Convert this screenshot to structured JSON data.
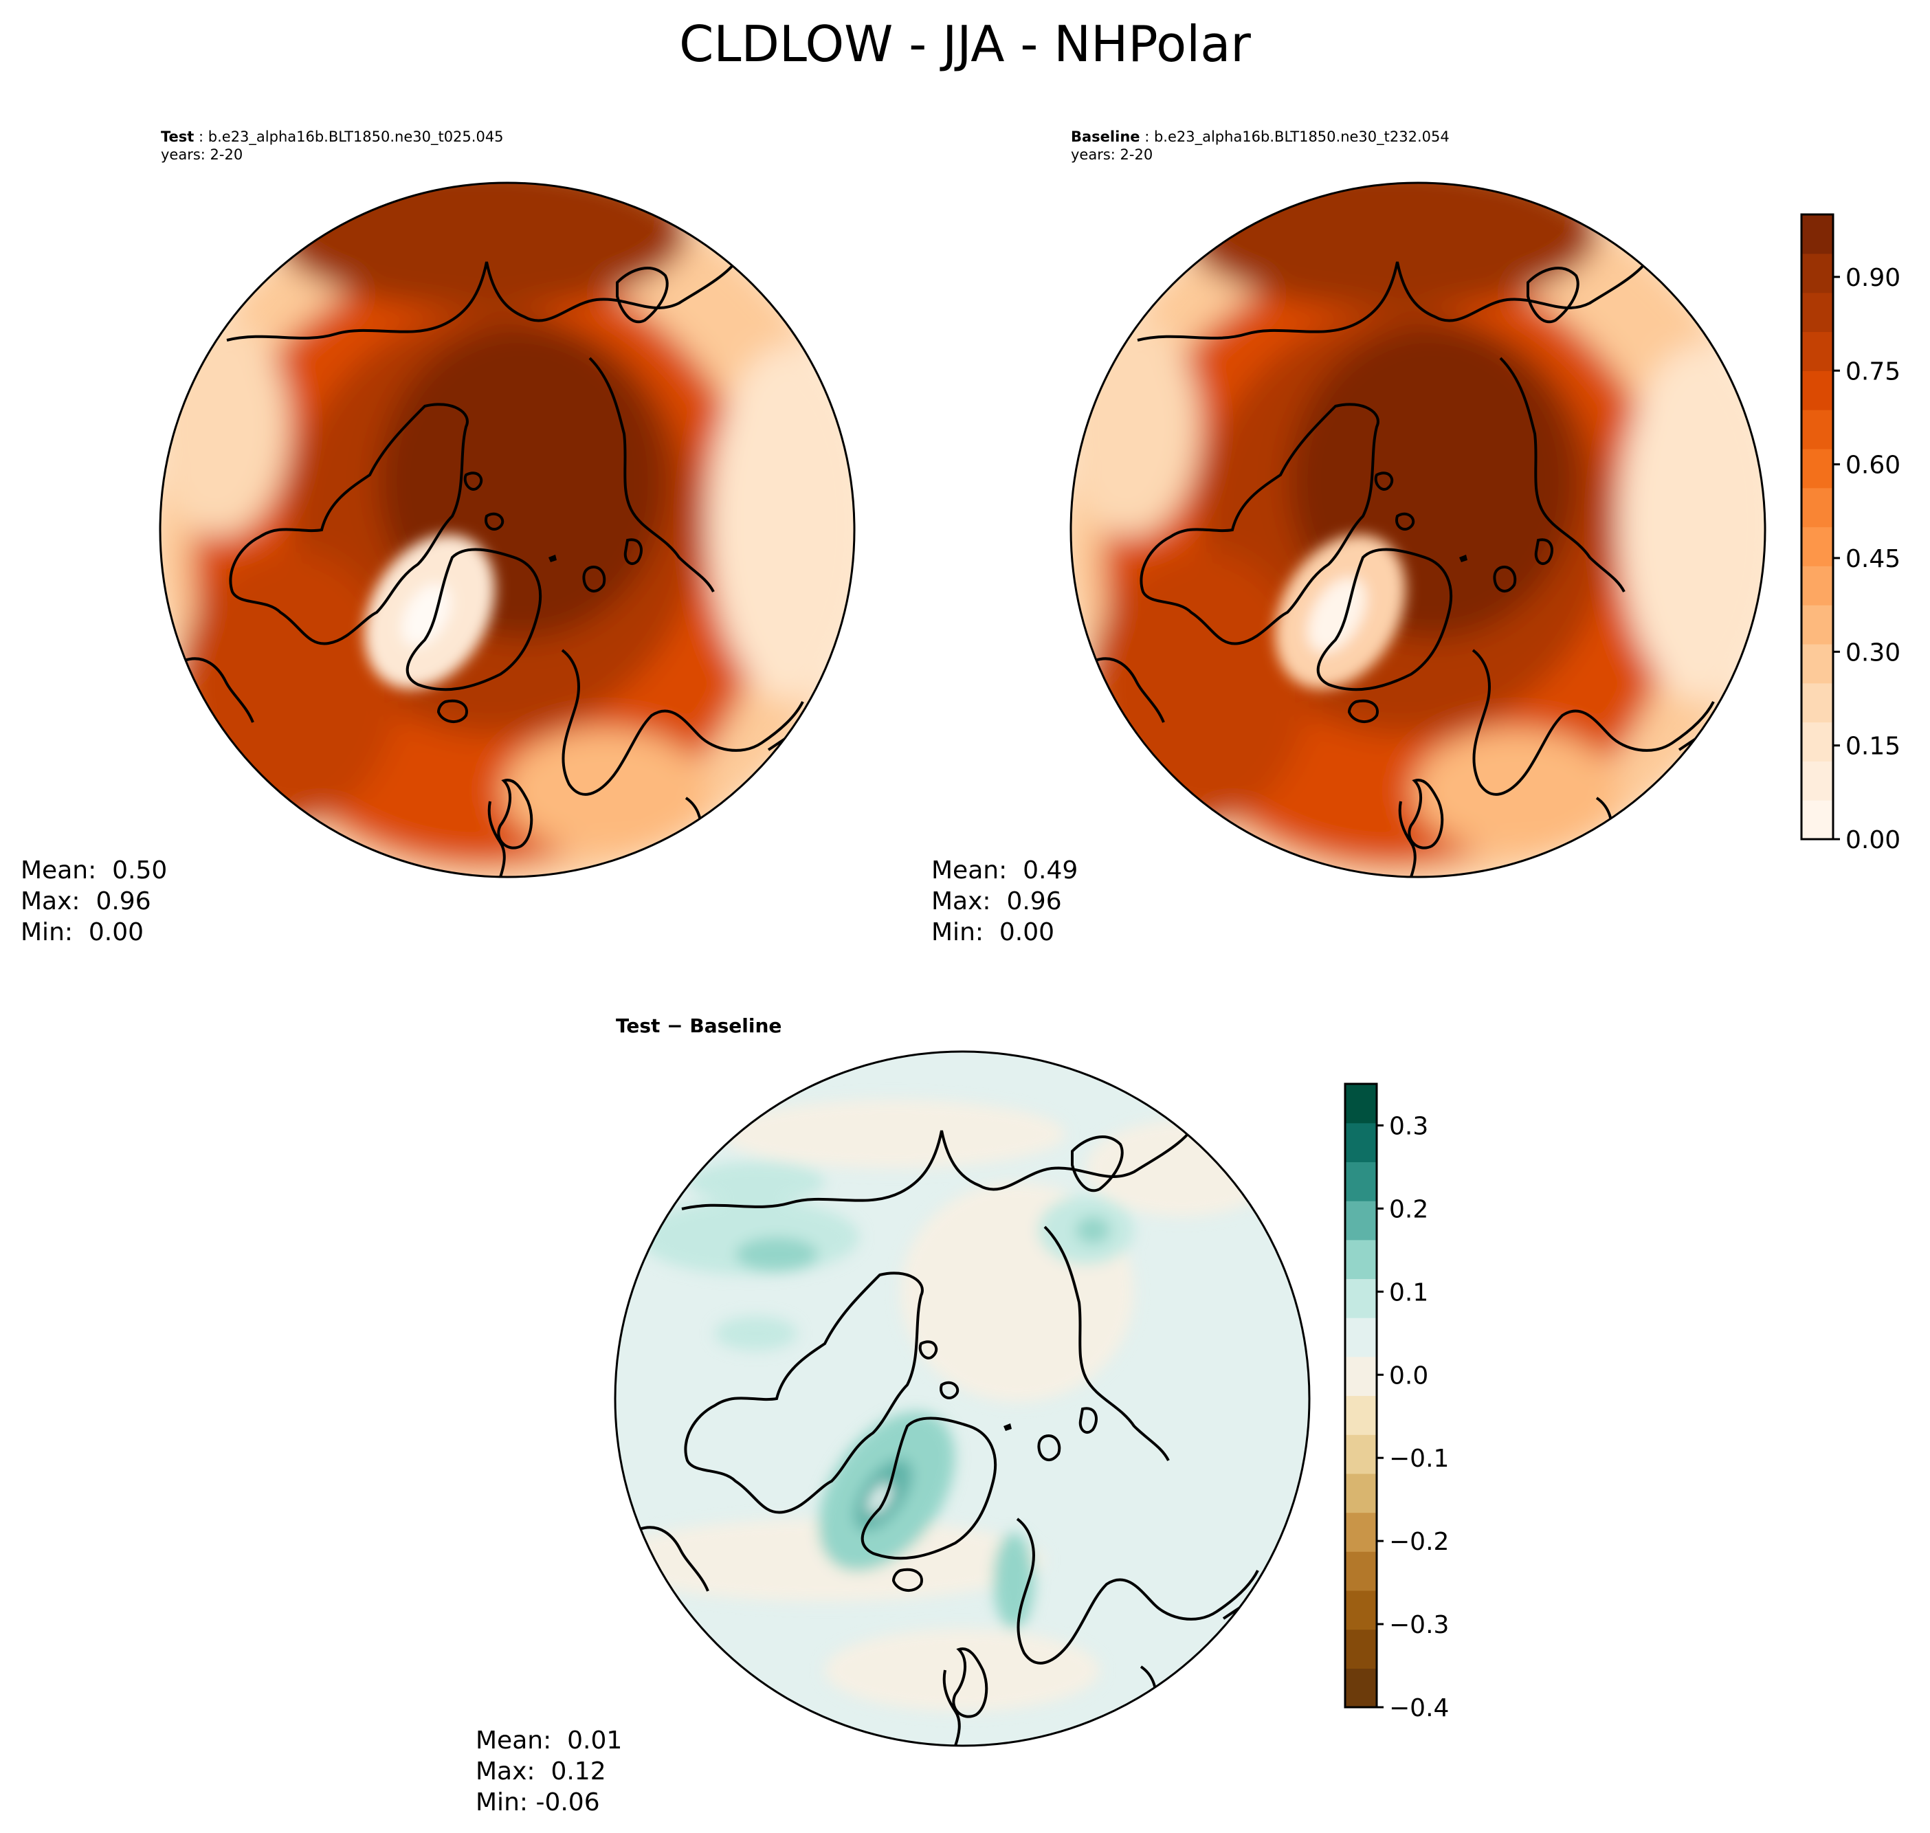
{
  "figure": {
    "title": "CLDLOW - JJA - NHPolar"
  },
  "panels": {
    "test": {
      "label": "Test",
      "case": "b.e23_alpha16b.BLT1850.ne30_t025.045",
      "years": "years: 2-20",
      "stats": {
        "mean": "Mean:  0.50",
        "max": "Max:  0.96",
        "min": "Min:  0.00"
      }
    },
    "baseline": {
      "label": "Baseline",
      "case": "b.e23_alpha16b.BLT1850.ne30_t232.054",
      "years": "years: 2-20",
      "stats": {
        "mean": "Mean:  0.49",
        "max": "Max:  0.96",
        "min": "Min:  0.00"
      }
    },
    "diff": {
      "title": "Test − Baseline",
      "stats": {
        "mean": "Mean:  0.01",
        "max": "Max:  0.12",
        "min": "Min: -0.06"
      }
    }
  },
  "colorbars": {
    "main": {
      "colormap": "Oranges",
      "range": [
        0.0,
        1.0
      ],
      "ticks": [
        "0.00",
        "0.15",
        "0.30",
        "0.45",
        "0.60",
        "0.75",
        "0.90"
      ],
      "tick_values": [
        0.0,
        0.15,
        0.3,
        0.45,
        0.6,
        0.75,
        0.9
      ],
      "colors": [
        "#fff5eb",
        "#feeddc",
        "#fee5cb",
        "#fdd9b4",
        "#fdca99",
        "#fdb97d",
        "#fda762",
        "#fd9649",
        "#f98534",
        "#f3701b",
        "#e95e0d",
        "#db4a02",
        "#c44103",
        "#ae3903",
        "#9a3203",
        "#7f2704"
      ]
    },
    "diff": {
      "colormap": "BrBG",
      "range": [
        -0.4,
        0.35
      ],
      "ticks": [
        "−0.4",
        "−0.3",
        "−0.2",
        "−0.1",
        "0.0",
        "0.1",
        "0.2",
        "0.3"
      ],
      "tick_values": [
        -0.4,
        -0.3,
        -0.2,
        -0.1,
        0.0,
        0.1,
        0.2,
        0.3
      ],
      "colors": [
        "#6c3b0b",
        "#854b0b",
        "#9d5f12",
        "#b3782a",
        "#c99548",
        "#d9b56f",
        "#e9cf97",
        "#f4e3bd",
        "#f5f0e4",
        "#e3f1ef",
        "#c4e9e2",
        "#94d5c9",
        "#5eb3a8",
        "#2d8f84",
        "#0e6f64",
        "#00513f"
      ]
    }
  },
  "map_fields": {
    "test": {
      "cap": "#7f2704",
      "ring1": "#ae3903",
      "ring2": "#db4a02",
      "outer": "#fdca99",
      "edge": "#fff0e0",
      "greenland": "#fde8d4",
      "greenland_core": "#fffaf5"
    },
    "baseline": {
      "cap": "#7f2704",
      "ring1": "#ae3903",
      "ring2": "#db4a02",
      "outer": "#fdca99",
      "edge": "#fff0e0",
      "greenland": "#fdd2ac",
      "greenland_core": "#fff5eb"
    },
    "diff": {
      "background": "#e3f1ef",
      "center": "#f5f0e4",
      "patch_pos": "#c4e9e2",
      "patch_pos2": "#94d5c9",
      "greenland": "#5eb3a8",
      "greenland_core": "#e3f1ef"
    }
  }
}
